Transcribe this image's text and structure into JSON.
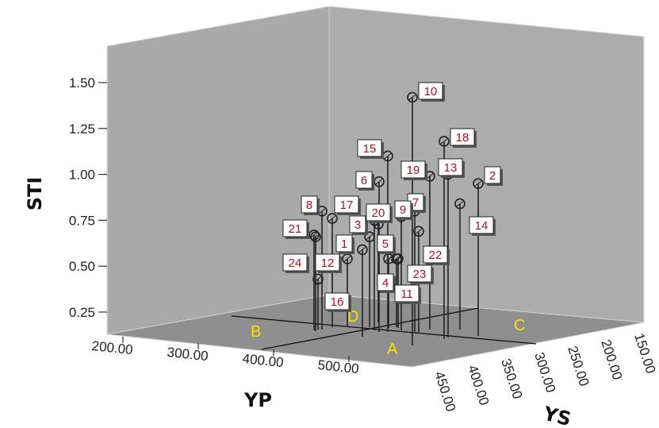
{
  "chart_data": {
    "type": "scatter",
    "variant": "3d-drop-line",
    "title": "",
    "xlabel": "YP",
    "ylabel": "STI",
    "zlabel": "YS",
    "x_ticks": [
      "200.00",
      "300.00",
      "400.00",
      "500.00"
    ],
    "y_ticks": [
      "0.25",
      "0.50",
      "0.75",
      "1.00",
      "1.25",
      "1.50"
    ],
    "z_ticks": [
      "450.00",
      "400.00",
      "350.00",
      "300.00",
      "250.00",
      "200.00",
      "150.00"
    ],
    "ylim": [
      0.15,
      1.65
    ],
    "quadrant_labels": [
      "B",
      "D",
      "A",
      "C"
    ],
    "colors": {
      "walls": "#a8a8a8",
      "floor": "#8e8e8e",
      "points": "#222222",
      "labels": "#b01020",
      "quadrants": "#ffe000"
    },
    "points": [
      {
        "label": "1",
        "sti": 0.59
      },
      {
        "label": "2",
        "sti": 0.95
      },
      {
        "label": "3",
        "sti": 0.73
      },
      {
        "label": "4",
        "sti": 0.54
      },
      {
        "label": "5",
        "sti": 0.66
      },
      {
        "label": "6",
        "sti": 0.96
      },
      {
        "label": "7",
        "sti": 0.8
      },
      {
        "label": "8",
        "sti": 0.8
      },
      {
        "label": "9",
        "sti": 0.77
      },
      {
        "label": "10",
        "sti": 1.42
      },
      {
        "label": "11",
        "sti": 0.54
      },
      {
        "label": "12",
        "sti": 0.54
      },
      {
        "label": "13",
        "sti": 1.0
      },
      {
        "label": "14",
        "sti": 0.84
      },
      {
        "label": "15",
        "sti": 1.1
      },
      {
        "label": "16",
        "sti": 0.43
      },
      {
        "label": "17",
        "sti": 0.76
      },
      {
        "label": "18",
        "sti": 1.18
      },
      {
        "label": "19",
        "sti": 0.99
      },
      {
        "label": "20",
        "sti": 0.75
      },
      {
        "label": "21",
        "sti": 0.66
      },
      {
        "label": "22",
        "sti": 0.69
      },
      {
        "label": "23",
        "sti": 0.54
      },
      {
        "label": "24",
        "sti": 0.67
      }
    ]
  }
}
